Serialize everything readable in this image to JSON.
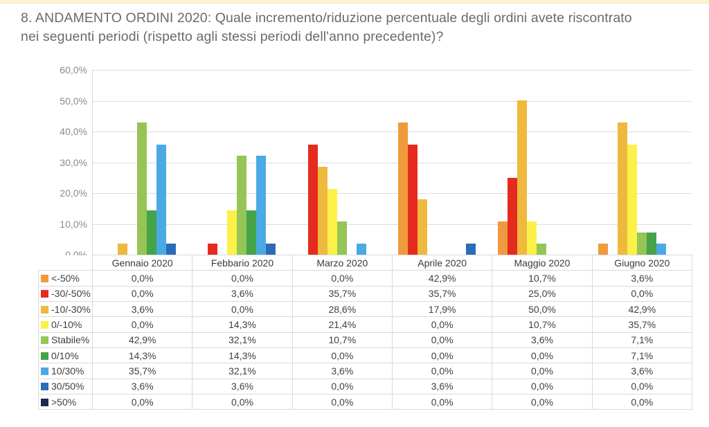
{
  "page": {
    "top_strip_color": "#FBF4CF"
  },
  "title": "8. ANDAMENTO ORDINI 2020: Quale incremento/riduzione percentuale degli ordini avete riscontrato nei seguenti periodi (rispetto agli stessi periodi dell'anno precedente)?",
  "chart_data": {
    "type": "bar",
    "title": "",
    "xlabel": "",
    "ylabel": "",
    "ylim": [
      0,
      60
    ],
    "grid": true,
    "legend_position": "table-left-column",
    "value_format": "percent-one-decimal-comma",
    "y_ticks": [
      "60,0%",
      "50,0%",
      "40,0%",
      "30,0%",
      "20,0%",
      "10,0%",
      "0,0%"
    ],
    "categories": [
      "Gennaio 2020",
      "Febbario 2020",
      "Marzo 2020",
      "Aprile 2020",
      "Maggio 2020",
      "Giugno 2020"
    ],
    "series": [
      {
        "name": "<-50%",
        "color": "#F09A3E",
        "values": [
          0,
          0,
          0,
          42.9,
          10.7,
          3.6
        ]
      },
      {
        "name": "-30/-50%",
        "color": "#E52B1D",
        "values": [
          0,
          3.6,
          35.7,
          35.7,
          25,
          0
        ]
      },
      {
        "name": "-10/-30%",
        "color": "#EFB83F",
        "values": [
          3.6,
          0,
          28.6,
          17.9,
          50,
          42.9
        ]
      },
      {
        "name": "0/-10%",
        "color": "#FBF148",
        "values": [
          0,
          14.3,
          21.4,
          0,
          10.7,
          35.7
        ]
      },
      {
        "name": "Stabile%",
        "color": "#95C555",
        "values": [
          42.9,
          32.1,
          10.7,
          0,
          3.6,
          7.1
        ]
      },
      {
        "name": "0/10%",
        "color": "#45A349",
        "values": [
          14.3,
          14.3,
          0,
          0,
          0,
          7.1
        ]
      },
      {
        "name": "10/30%",
        "color": "#4BAAE4",
        "values": [
          35.7,
          32.1,
          3.6,
          0,
          0,
          3.6
        ]
      },
      {
        "name": "30/50%",
        "color": "#2A6CB8",
        "values": [
          3.6,
          3.6,
          0,
          3.6,
          0,
          0
        ]
      },
      {
        "name": ">50%",
        "color": "#1B2A4E",
        "values": [
          0,
          0,
          0,
          0,
          0,
          0
        ]
      }
    ]
  }
}
